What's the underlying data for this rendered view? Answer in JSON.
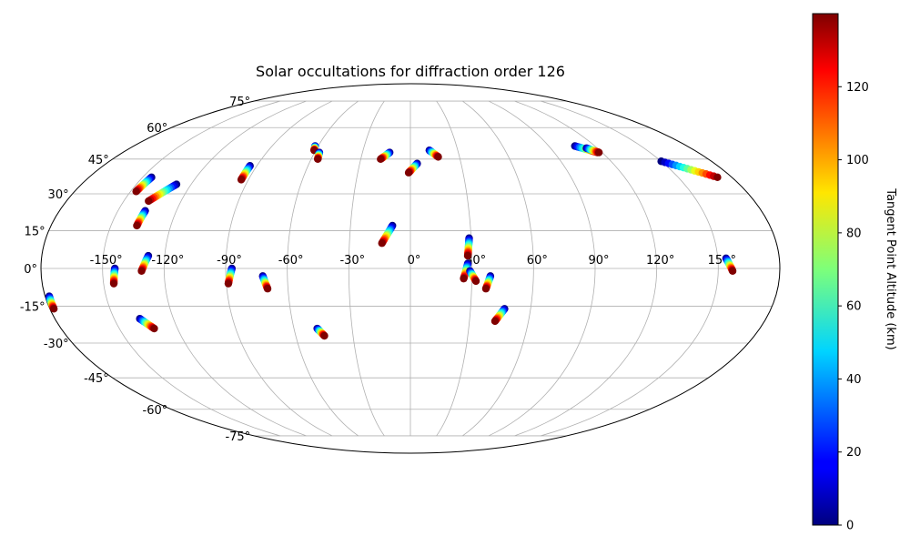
{
  "chart_data": {
    "type": "scatter",
    "projection": "mollweide",
    "title": "Solar occultations for diffraction order 126",
    "lon_ticks": [
      "-150°",
      "-120°",
      "-90°",
      "-60°",
      "-30°",
      "0°",
      "30°",
      "60°",
      "90°",
      "120°",
      "150°"
    ],
    "lat_ticks": [
      "75°",
      "60°",
      "45°",
      "30°",
      "15°",
      "0°",
      "-15°",
      "-30°",
      "-45°",
      "-60°",
      "-75°"
    ],
    "grid": true,
    "colormap": "jet",
    "colorbar": {
      "label": "Tangent Point Altitude (km)",
      "range": [
        0,
        140
      ],
      "ticks": [
        "0",
        "20",
        "40",
        "60",
        "80",
        "100",
        "120"
      ],
      "placement": "right"
    },
    "occultation_tracks": [
      {
        "start": [
          -178,
          -11
        ],
        "end": [
          -178,
          -16
        ]
      },
      {
        "start": [
          -145,
          37
        ],
        "end": [
          -147,
          31
        ]
      },
      {
        "start": [
          -128,
          34
        ],
        "end": [
          -137,
          27
        ]
      },
      {
        "start": [
          -136,
          23
        ],
        "end": [
          -137,
          17
        ]
      },
      {
        "start": [
          -144,
          0
        ],
        "end": [
          -145,
          -6
        ]
      },
      {
        "start": [
          -128,
          5
        ],
        "end": [
          -131,
          -1
        ]
      },
      {
        "start": [
          -137,
          -20
        ],
        "end": [
          -132,
          -24
        ]
      },
      {
        "start": [
          -94,
          42
        ],
        "end": [
          -94,
          36
        ]
      },
      {
        "start": [
          -87,
          0
        ],
        "end": [
          -89,
          -6
        ]
      },
      {
        "start": [
          -62,
          51
        ],
        "end": [
          -61,
          49
        ]
      },
      {
        "start": [
          -57,
          48
        ],
        "end": [
          -56,
          45
        ]
      },
      {
        "start": [
          -72,
          -3
        ],
        "end": [
          -70,
          -8
        ]
      },
      {
        "start": [
          -48,
          -24
        ],
        "end": [
          -45,
          -27
        ]
      },
      {
        "start": [
          -13,
          48
        ],
        "end": [
          -18,
          45
        ]
      },
      {
        "start": [
          4,
          43
        ],
        "end": [
          -1,
          39
        ]
      },
      {
        "start": [
          -9,
          17
        ],
        "end": [
          -14,
          10
        ]
      },
      {
        "start": [
          12,
          49
        ],
        "end": [
          17,
          46
        ]
      },
      {
        "start": [
          29,
          12
        ],
        "end": [
          28,
          5
        ]
      },
      {
        "start": [
          28,
          2
        ],
        "end": [
          26,
          -4
        ]
      },
      {
        "start": [
          29,
          -1
        ],
        "end": [
          32,
          -5
        ]
      },
      {
        "start": [
          39,
          -3
        ],
        "end": [
          37,
          -8
        ]
      },
      {
        "start": [
          47,
          -16
        ],
        "end": [
          43,
          -21
        ]
      },
      {
        "start": [
          107,
          51
        ],
        "end": [
          117,
          48
        ]
      },
      {
        "start": [
          113,
          50
        ],
        "end": [
          118,
          48
        ]
      },
      {
        "start": [
          150,
          44
        ],
        "end": [
          172,
          37
        ]
      },
      {
        "start": [
          154,
          4
        ],
        "end": [
          157,
          -1
        ]
      }
    ]
  }
}
